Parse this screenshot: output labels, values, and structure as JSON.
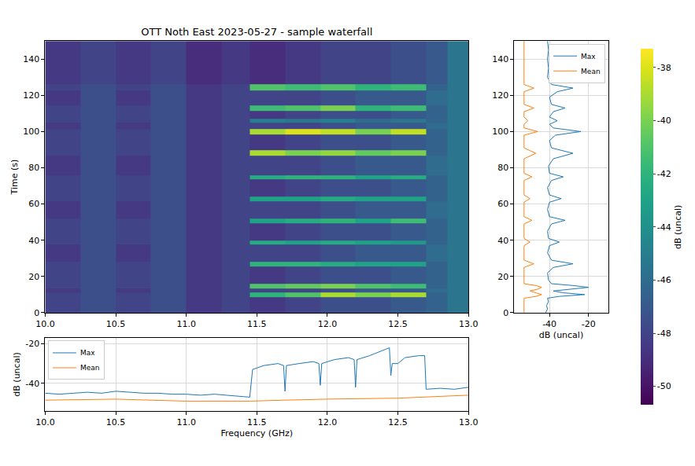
{
  "chart_data": [
    {
      "type": "heatmap",
      "title": "OTT Noth East 2023-05-27 - sample waterfall",
      "y_label": "Time (s)",
      "x_edges": [
        10.0,
        10.25,
        10.5,
        10.75,
        11.0,
        11.25,
        11.45,
        11.7,
        11.95,
        12.2,
        12.45,
        12.7,
        12.85,
        13.0
      ],
      "y_edges": [
        0,
        8.5,
        11,
        13.5,
        16,
        25.5,
        28,
        37.5,
        40,
        49.5,
        52,
        61.5,
        64,
        73.5,
        76,
        86.5,
        89.5,
        98.5,
        101.5,
        105,
        107,
        111.5,
        114.5,
        122.5,
        126,
        150
      ],
      "z": [
        [
          -48,
          -47.5,
          -48,
          -47.5,
          -48.5,
          -48,
          -48.5,
          -48,
          -47.5,
          -47.5,
          -47,
          -46.5,
          -45.5
        ],
        [
          -48,
          -47.5,
          -48,
          -47.5,
          -48.5,
          -48,
          -42,
          -41,
          -39,
          -40,
          -39,
          -46.5,
          -45.5
        ],
        [
          -48.5,
          -47.5,
          -48.5,
          -47.5,
          -48.5,
          -48,
          -48,
          -48,
          -47.5,
          -47,
          -47,
          -46,
          -45.5
        ],
        [
          -48,
          -47.5,
          -48,
          -47.5,
          -48.5,
          -48,
          -41,
          -40.5,
          -40,
          -41,
          -41.5,
          -46.5,
          -45.5
        ],
        [
          -48,
          -47.5,
          -48,
          -47.5,
          -48.5,
          -48,
          -48.5,
          -48,
          -47.5,
          -47.5,
          -47,
          -46.5,
          -45.5
        ],
        [
          -48,
          -47.5,
          -48,
          -47.5,
          -48.5,
          -48,
          -42,
          -42,
          -42.5,
          -43,
          -43,
          -46.5,
          -45.5
        ],
        [
          -48.5,
          -47.5,
          -48.5,
          -47.5,
          -48.5,
          -48,
          -48,
          -48,
          -47.5,
          -47,
          -47,
          -46,
          -45.5
        ],
        [
          -48,
          -47.5,
          -48,
          -47.5,
          -48.5,
          -48,
          -42.5,
          -43,
          -42.5,
          -43,
          -43.5,
          -46.5,
          -45.5
        ],
        [
          -48,
          -47.5,
          -48,
          -47.5,
          -48.5,
          -48,
          -48.5,
          -48,
          -47.5,
          -47.5,
          -47,
          -46.5,
          -45.5
        ],
        [
          -48,
          -47.5,
          -48,
          -47.5,
          -48.5,
          -48,
          -43,
          -42.5,
          -42,
          -43,
          -41.5,
          -46.5,
          -45.5
        ],
        [
          -48.5,
          -47.5,
          -48.5,
          -47.5,
          -48.5,
          -48,
          -48,
          -48,
          -47.5,
          -47,
          -47,
          -46,
          -45.5
        ],
        [
          -48,
          -47.5,
          -48,
          -47.5,
          -48.5,
          -48,
          -43,
          -43,
          -42.5,
          -43,
          -43,
          -46.5,
          -45.5
        ],
        [
          -48,
          -47.5,
          -48,
          -47.5,
          -48.5,
          -48,
          -48.5,
          -48,
          -47.5,
          -47.5,
          -47,
          -46.5,
          -45.5
        ],
        [
          -48,
          -47.5,
          -48,
          -47.5,
          -48.5,
          -48,
          -42.5,
          -42,
          -42,
          -43,
          -42.5,
          -46.5,
          -45.5
        ],
        [
          -48.5,
          -47.5,
          -48.5,
          -47.5,
          -48.5,
          -48,
          -48,
          -48,
          -47.5,
          -47,
          -47,
          -46,
          -45.5
        ],
        [
          -48,
          -47.5,
          -48,
          -47.5,
          -48.5,
          -48,
          -39,
          -40,
          -39.5,
          -40.5,
          -40,
          -46.5,
          -45.5
        ],
        [
          -48,
          -47.5,
          -48,
          -47.5,
          -48.5,
          -48,
          -48.5,
          -48,
          -47.5,
          -47.5,
          -47,
          -46.5,
          -45.5
        ],
        [
          -48,
          -47.5,
          -48,
          -47.5,
          -48.5,
          -48,
          -39,
          -38,
          -38.5,
          -40,
          -38.5,
          -46.5,
          -45.5
        ],
        [
          -48.5,
          -47.5,
          -48.5,
          -47.5,
          -48.5,
          -48,
          -48,
          -48,
          -47.5,
          -47,
          -47,
          -46,
          -45.5
        ],
        [
          -48,
          -47.5,
          -48,
          -47.5,
          -48.5,
          -48,
          -45,
          -45.5,
          -45,
          -46,
          -45.5,
          -46.5,
          -45.5
        ],
        [
          -48,
          -47.5,
          -48,
          -47.5,
          -48.5,
          -48,
          -48.5,
          -48,
          -47.5,
          -47.5,
          -47,
          -46.5,
          -45.5
        ],
        [
          -48,
          -47.5,
          -48,
          -47.5,
          -48.5,
          -48,
          -41.5,
          -41,
          -40,
          -42,
          -41.5,
          -46.5,
          -45.5
        ],
        [
          -48.5,
          -47.5,
          -48.5,
          -47.5,
          -48.5,
          -48,
          -48,
          -48,
          -47.5,
          -47,
          -47,
          -46,
          -45.5
        ],
        [
          -48,
          -47.5,
          -48,
          -47.5,
          -48.5,
          -48,
          -41,
          -41.5,
          -41,
          -42,
          -41.5,
          -46.5,
          -45.5
        ],
        [
          -48.5,
          -48,
          -48.5,
          -48,
          -49,
          -48.5,
          -49,
          -48.5,
          -48,
          -48,
          -47.5,
          -47,
          -45.5
        ]
      ],
      "xlim": [
        10.0,
        13.0
      ],
      "xticks": [
        {
          "value": 10,
          "label": "10.0"
        },
        10.5,
        {
          "value": 11,
          "label": "11.0"
        },
        11.5,
        {
          "value": 12,
          "label": "12.0"
        },
        12.5,
        {
          "value": 13,
          "label": "13.0"
        }
      ],
      "ylim": [
        0,
        150
      ],
      "yticks": [
        0,
        20,
        40,
        60,
        80,
        100,
        120,
        140
      ],
      "zlim": [
        -50.7,
        -37.3
      ],
      "zticks": [
        -38,
        -40,
        -42,
        -44,
        -46,
        -48,
        -50
      ],
      "colorbar_label": "dB (uncal)"
    },
    {
      "type": "line",
      "x_label": "dB (uncal)",
      "xlim": [
        -58,
        -10
      ],
      "xticks": [
        -40,
        -20
      ],
      "ylim": [
        0,
        150
      ],
      "yticks": [
        0,
        20,
        40,
        60,
        80,
        100,
        120,
        140
      ],
      "grid": true,
      "legend": "upper right",
      "orientation": "horizontal",
      "series": [
        {
          "name": "Max",
          "color": "#1f77b4",
          "y": [
            0,
            2,
            4,
            6,
            8,
            9,
            10,
            11,
            12,
            13,
            14,
            15,
            16,
            18,
            22,
            25,
            27,
            29,
            33,
            37,
            39,
            41,
            45,
            49,
            51,
            53,
            57,
            61,
            63,
            65,
            69,
            73,
            75,
            77,
            81,
            85,
            88,
            91,
            95,
            98,
            100,
            102,
            104,
            106,
            108,
            111,
            113,
            115,
            119,
            122,
            124,
            126,
            130,
            135,
            140,
            145,
            150
          ],
          "values": [
            -42,
            -41,
            -41.5,
            -40.5,
            -41,
            -35,
            -22,
            -33,
            -38,
            -30,
            -20,
            -28,
            -39,
            -40.5,
            -41,
            -38,
            -28,
            -39,
            -41,
            -40,
            -35,
            -40.5,
            -41,
            -39,
            -32,
            -40,
            -41,
            -40,
            -34,
            -40,
            -41,
            -39,
            -33,
            -40,
            -40.5,
            -38,
            -28,
            -39,
            -40,
            -37,
            -24,
            -38,
            -40,
            -36,
            -40,
            -38,
            -32,
            -39,
            -40,
            -36,
            -28,
            -39,
            -41,
            -40.5,
            -41,
            -40.5,
            -41
          ]
        },
        {
          "name": "Mean",
          "color": "#ff7f0e",
          "y": [
            0,
            2,
            4,
            6,
            8,
            9,
            10,
            11,
            12,
            13,
            14,
            15,
            16,
            18,
            22,
            25,
            27,
            29,
            33,
            37,
            39,
            41,
            45,
            49,
            51,
            53,
            57,
            61,
            63,
            65,
            69,
            73,
            75,
            77,
            81,
            85,
            88,
            91,
            95,
            98,
            100,
            102,
            104,
            106,
            108,
            111,
            113,
            115,
            119,
            122,
            124,
            126,
            130,
            135,
            140,
            145,
            150
          ],
          "values": [
            -53,
            -53,
            -53,
            -53,
            -53,
            -47,
            -44,
            -47,
            -50,
            -46,
            -44,
            -47,
            -53,
            -53,
            -53,
            -53,
            -48,
            -53,
            -53,
            -53,
            -50,
            -53,
            -53,
            -53,
            -49,
            -53,
            -53,
            -53,
            -50,
            -53,
            -53,
            -53,
            -49,
            -53,
            -53,
            -53,
            -47,
            -53,
            -53,
            -53,
            -46,
            -53,
            -53,
            -51,
            -53,
            -53,
            -48,
            -53,
            -53,
            -53,
            -48,
            -53,
            -53,
            -53,
            -53,
            -53,
            -53
          ]
        }
      ]
    },
    {
      "type": "line",
      "x_label": "Frequency (GHz)",
      "y_label": "dB (uncal)",
      "xlim": [
        10.0,
        13.0
      ],
      "xticks": [
        {
          "value": 10,
          "label": "10.0"
        },
        10.5,
        {
          "value": 11,
          "label": "11.0"
        },
        11.5,
        {
          "value": 12,
          "label": "12.0"
        },
        12.5,
        {
          "value": 13,
          "label": "13.0"
        }
      ],
      "ylim": [
        -54,
        -17
      ],
      "yticks": [
        -40,
        -20
      ],
      "grid": true,
      "legend": "upper left",
      "series": [
        {
          "name": "Max",
          "color": "#1f77b4",
          "x": [
            10.0,
            10.1,
            10.2,
            10.3,
            10.4,
            10.5,
            10.6,
            10.7,
            10.8,
            10.9,
            11.0,
            11.1,
            11.2,
            11.3,
            11.4,
            11.45,
            11.47,
            11.55,
            11.65,
            11.69,
            11.7,
            11.71,
            11.8,
            11.9,
            11.94,
            11.95,
            11.96,
            12.05,
            12.15,
            12.19,
            12.2,
            12.21,
            12.3,
            12.4,
            12.44,
            12.45,
            12.46,
            12.5,
            12.55,
            12.65,
            12.69,
            12.7,
            12.8,
            12.9,
            13.0
          ],
          "values": [
            -45,
            -45.5,
            -45,
            -44.5,
            -45,
            -44,
            -44.5,
            -45,
            -45,
            -45.5,
            -45.5,
            -46,
            -45.5,
            -46,
            -46.5,
            -47,
            -33,
            -31,
            -30,
            -31,
            -44,
            -31,
            -30,
            -29,
            -30,
            -41,
            -30,
            -28,
            -27,
            -28,
            -42,
            -28,
            -26,
            -23,
            -22,
            -36,
            -30,
            -30,
            -27,
            -26,
            -26,
            -43,
            -42.5,
            -43,
            -42
          ]
        },
        {
          "name": "Mean",
          "color": "#ff7f0e",
          "x": [
            10.0,
            10.5,
            11.0,
            11.45,
            11.7,
            12.0,
            12.5,
            12.7,
            13.0
          ],
          "values": [
            -48.5,
            -48,
            -49,
            -49,
            -48.5,
            -48,
            -47.5,
            -47,
            -46
          ]
        }
      ]
    }
  ]
}
